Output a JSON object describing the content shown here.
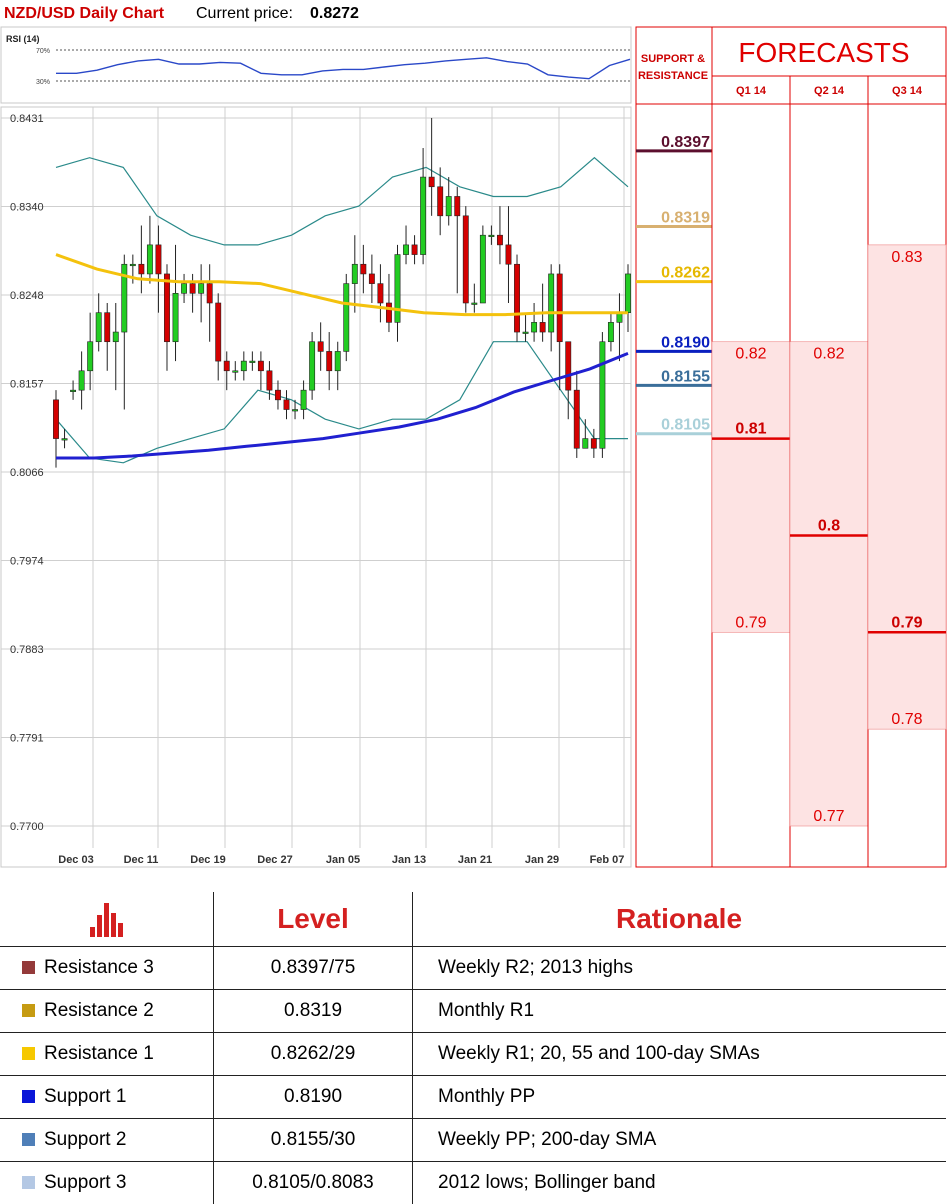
{
  "header": {
    "title": "NZD/USD Daily Chart",
    "price_label": "Current price:",
    "price_value": "0.8272"
  },
  "rsi": {
    "label": "RSI (14)",
    "upper": "70%",
    "lower": "30%"
  },
  "colors": {
    "r3": "#5c0f2e",
    "r2": "#d8b070",
    "r1": "#f4c20d",
    "s1": "#0a1fbf",
    "s2": "#3a6e9a",
    "s3": "#a9d0d9",
    "sma55": "#f4c20d",
    "sma200": "#2020d0",
    "bollinger": "#2a8a8a",
    "up": "#22cc22",
    "down": "#d40000"
  },
  "chart_data": {
    "type": "candlestick",
    "title": "NZD/USD Daily Chart",
    "ylim": [
      0.77,
      0.8431
    ],
    "yticks": [
      "0.8431",
      "0.8340",
      "0.8248",
      "0.8157",
      "0.8066",
      "0.7974",
      "0.7883",
      "0.7791",
      "0.7700"
    ],
    "xticks": [
      "Dec 03",
      "Dec 11",
      "Dec 19",
      "Dec 27",
      "Jan 05",
      "Jan 13",
      "Jan 21",
      "Jan 29",
      "Feb 07"
    ],
    "candles": [
      [
        0.814,
        0.81,
        0.815,
        0.807
      ],
      [
        0.81,
        0.81,
        0.811,
        0.809
      ],
      [
        0.815,
        0.815,
        0.816,
        0.814
      ],
      [
        0.815,
        0.817,
        0.819,
        0.813
      ],
      [
        0.817,
        0.82,
        0.823,
        0.815
      ],
      [
        0.82,
        0.823,
        0.825,
        0.819
      ],
      [
        0.823,
        0.82,
        0.824,
        0.817
      ],
      [
        0.82,
        0.821,
        0.824,
        0.815
      ],
      [
        0.821,
        0.828,
        0.829,
        0.813
      ],
      [
        0.828,
        0.828,
        0.829,
        0.826
      ],
      [
        0.828,
        0.827,
        0.832,
        0.825
      ],
      [
        0.827,
        0.83,
        0.833,
        0.826
      ],
      [
        0.83,
        0.827,
        0.832,
        0.823
      ],
      [
        0.827,
        0.82,
        0.828,
        0.817
      ],
      [
        0.82,
        0.825,
        0.83,
        0.818
      ],
      [
        0.825,
        0.826,
        0.827,
        0.824
      ],
      [
        0.826,
        0.825,
        0.827,
        0.823
      ],
      [
        0.825,
        0.826,
        0.828,
        0.822
      ],
      [
        0.826,
        0.824,
        0.828,
        0.82
      ],
      [
        0.824,
        0.818,
        0.825,
        0.816
      ],
      [
        0.818,
        0.817,
        0.819,
        0.815
      ],
      [
        0.817,
        0.817,
        0.818,
        0.816
      ],
      [
        0.817,
        0.818,
        0.819,
        0.816
      ],
      [
        0.818,
        0.818,
        0.819,
        0.817
      ],
      [
        0.818,
        0.817,
        0.819,
        0.815
      ],
      [
        0.817,
        0.815,
        0.818,
        0.814
      ],
      [
        0.815,
        0.814,
        0.816,
        0.813
      ],
      [
        0.814,
        0.813,
        0.815,
        0.812
      ],
      [
        0.813,
        0.813,
        0.814,
        0.812
      ],
      [
        0.813,
        0.815,
        0.816,
        0.812
      ],
      [
        0.815,
        0.82,
        0.821,
        0.814
      ],
      [
        0.82,
        0.819,
        0.822,
        0.817
      ],
      [
        0.819,
        0.817,
        0.821,
        0.815
      ],
      [
        0.817,
        0.819,
        0.82,
        0.815
      ],
      [
        0.819,
        0.826,
        0.827,
        0.818
      ],
      [
        0.826,
        0.828,
        0.831,
        0.823
      ],
      [
        0.828,
        0.827,
        0.83,
        0.825
      ],
      [
        0.827,
        0.826,
        0.829,
        0.824
      ],
      [
        0.826,
        0.824,
        0.828,
        0.822
      ],
      [
        0.824,
        0.822,
        0.827,
        0.821
      ],
      [
        0.822,
        0.829,
        0.83,
        0.82
      ],
      [
        0.829,
        0.83,
        0.832,
        0.828
      ],
      [
        0.83,
        0.829,
        0.831,
        0.828
      ],
      [
        0.829,
        0.837,
        0.84,
        0.828
      ],
      [
        0.837,
        0.836,
        0.8431,
        0.833
      ],
      [
        0.836,
        0.833,
        0.838,
        0.831
      ],
      [
        0.833,
        0.835,
        0.837,
        0.832
      ],
      [
        0.835,
        0.833,
        0.836,
        0.825
      ],
      [
        0.833,
        0.824,
        0.834,
        0.823
      ],
      [
        0.824,
        0.824,
        0.826,
        0.823
      ],
      [
        0.824,
        0.831,
        0.832,
        0.824
      ],
      [
        0.831,
        0.831,
        0.832,
        0.83
      ],
      [
        0.831,
        0.83,
        0.834,
        0.828
      ],
      [
        0.83,
        0.828,
        0.834,
        0.824
      ],
      [
        0.828,
        0.821,
        0.829,
        0.82
      ],
      [
        0.821,
        0.821,
        0.823,
        0.82
      ],
      [
        0.821,
        0.822,
        0.824,
        0.82
      ],
      [
        0.822,
        0.821,
        0.826,
        0.82
      ],
      [
        0.821,
        0.827,
        0.828,
        0.819
      ],
      [
        0.827,
        0.82,
        0.828,
        0.815
      ],
      [
        0.82,
        0.815,
        0.82,
        0.812
      ],
      [
        0.815,
        0.809,
        0.817,
        0.808
      ],
      [
        0.809,
        0.81,
        0.812,
        0.809
      ],
      [
        0.81,
        0.809,
        0.811,
        0.808
      ],
      [
        0.809,
        0.82,
        0.821,
        0.808
      ],
      [
        0.82,
        0.822,
        0.823,
        0.819
      ],
      [
        0.822,
        0.823,
        0.825,
        0.818
      ],
      [
        0.823,
        0.827,
        0.828,
        0.821
      ]
    ],
    "sma55": [
      0.829,
      0.8275,
      0.8265,
      0.8262,
      0.8262,
      0.826,
      0.825,
      0.824,
      0.8235,
      0.823,
      0.8228,
      0.8228,
      0.823,
      0.823,
      0.823
    ],
    "sma200": [
      0.808,
      0.808,
      0.8082,
      0.8085,
      0.8088,
      0.8092,
      0.8096,
      0.81,
      0.8106,
      0.8112,
      0.812,
      0.8132,
      0.8148,
      0.816,
      0.8172,
      0.8188
    ],
    "bollinger_upper": [
      0.838,
      0.839,
      0.838,
      0.833,
      0.831,
      0.83,
      0.83,
      0.831,
      0.833,
      0.834,
      0.837,
      0.838,
      0.836,
      0.835,
      0.835,
      0.836,
      0.839,
      0.836
    ],
    "bollinger_lower": [
      0.812,
      0.808,
      0.8075,
      0.809,
      0.81,
      0.811,
      0.815,
      0.814,
      0.812,
      0.811,
      0.812,
      0.812,
      0.814,
      0.82,
      0.82,
      0.815,
      0.81,
      0.81
    ],
    "rsi_values": [
      40,
      40,
      44,
      51,
      56,
      58,
      52,
      52,
      54,
      53,
      40,
      38,
      38,
      43,
      45,
      45,
      48,
      51,
      53,
      56,
      58,
      60,
      55,
      52,
      38,
      35,
      33,
      50,
      58
    ]
  },
  "sr_panel": {
    "title_line1": "SUPPORT &",
    "title_line2": "RESISTANCE",
    "levels": [
      {
        "label": "0.8397",
        "value": 0.8397,
        "color": "#5c0f2e"
      },
      {
        "label": "0.8319",
        "value": 0.8319,
        "color": "#d8b070"
      },
      {
        "label": "0.8262",
        "value": 0.8262,
        "color": "#f4c20d"
      },
      {
        "label": "0.8190",
        "value": 0.819,
        "color": "#0a1fbf"
      },
      {
        "label": "0.8155",
        "value": 0.8155,
        "color": "#3a6e9a"
      },
      {
        "label": "0.8105",
        "value": 0.8105,
        "color": "#a9d0d9"
      }
    ]
  },
  "forecasts": {
    "title": "FORECASTS",
    "quarters": [
      {
        "name": "Q1 14",
        "high": 0.82,
        "high_label": "0.82",
        "mid": 0.81,
        "mid_label": "0.81",
        "low": 0.79,
        "low_label": "0.79"
      },
      {
        "name": "Q2 14",
        "high": 0.82,
        "high_label": "0.82",
        "mid": 0.8,
        "mid_label": "0.8",
        "low": 0.77,
        "low_label": "0.77"
      },
      {
        "name": "Q3 14",
        "high": 0.83,
        "high_label": "0.83",
        "mid": 0.79,
        "mid_label": "0.79",
        "low": 0.78,
        "low_label": "0.78"
      }
    ]
  },
  "table": {
    "header_level": "Level",
    "header_rationale": "Rationale",
    "rows": [
      {
        "name": "Resistance 3",
        "level": "0.8397/75",
        "rationale": "Weekly R2; 2013 highs",
        "color": "#943a3a"
      },
      {
        "name": "Resistance 2",
        "level": "0.8319",
        "rationale": "Monthly R1",
        "color": "#c69b12"
      },
      {
        "name": "Resistance 1",
        "level": "0.8262/29",
        "rationale": "Weekly R1; 20, 55 and 100-day SMAs",
        "color": "#f6c800"
      },
      {
        "name": "Support 1",
        "level": "0.8190",
        "rationale": "Monthly PP",
        "color": "#0a16d8"
      },
      {
        "name": "Support 2",
        "level": "0.8155/30",
        "rationale": "Weekly PP; 200-day SMA",
        "color": "#4f7fb8"
      },
      {
        "name": "Support 3",
        "level": "0.8105/0.8083",
        "rationale": "2012 lows; Bollinger band",
        "color": "#b4c8e4"
      }
    ]
  }
}
